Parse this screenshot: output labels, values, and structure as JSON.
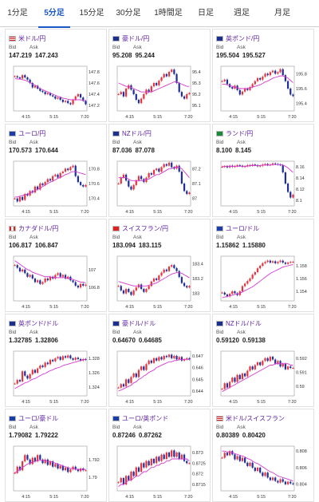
{
  "tabs": [
    {
      "label": "1分足",
      "active": false
    },
    {
      "label": "5分足",
      "active": true
    },
    {
      "label": "15分足",
      "active": false
    },
    {
      "label": "30分足",
      "active": false
    },
    {
      "label": "1時間足",
      "active": false
    },
    {
      "label": "日足",
      "active": false
    },
    {
      "label": "週足",
      "active": false
    },
    {
      "label": "月足",
      "active": false
    }
  ],
  "labels": {
    "bid": "Bid",
    "ask": "Ask"
  },
  "colors": {
    "up": "#e8323c",
    "down": "#1f2f9a",
    "ma": "#d63ad0",
    "ma2": "#3ba3d6",
    "link": "#5a1f9e",
    "active_tab": "#1a56c4"
  },
  "pairs": [
    {
      "name": "米ドル/円",
      "flag": "us-jp",
      "bid": "147.219",
      "ask": "147.243",
      "y_ticks": [
        "147.8",
        "147.6",
        "147.4",
        "147.2"
      ],
      "y_min": 147.1,
      "y_max": 147.9,
      "close": [
        147.72,
        147.7,
        147.68,
        147.74,
        147.7,
        147.66,
        147.6,
        147.52,
        147.55,
        147.5,
        147.46,
        147.44,
        147.4,
        147.42,
        147.38,
        147.36,
        147.32,
        147.34,
        147.3,
        147.26,
        147.28,
        147.24,
        147.22,
        147.3,
        147.36,
        147.4,
        147.34,
        147.28,
        147.22
      ],
      "ma": [
        147.68,
        147.67,
        147.67,
        147.66,
        147.65,
        147.63,
        147.61,
        147.58,
        147.56,
        147.53,
        147.5,
        147.48,
        147.46,
        147.44,
        147.42,
        147.4,
        147.38,
        147.36,
        147.35,
        147.33,
        147.32,
        147.31,
        147.3,
        147.3,
        147.3,
        147.3,
        147.3,
        147.29,
        147.28
      ]
    },
    {
      "name": "豪ドル/円",
      "flag": "au-jp",
      "bid": "95.208",
      "ask": "95.244",
      "y_ticks": [
        "95.4",
        "95.3",
        "95.2",
        "95.1"
      ],
      "y_min": 95.05,
      "y_max": 95.45,
      "close": [
        95.2,
        95.22,
        95.18,
        95.25,
        95.28,
        95.24,
        95.2,
        95.15,
        95.12,
        95.16,
        95.2,
        95.24,
        95.22,
        95.27,
        95.3,
        95.28,
        95.32,
        95.35,
        95.38,
        95.36,
        95.4,
        95.42,
        95.38,
        95.3,
        95.22,
        95.18,
        95.16,
        95.2,
        95.21
      ],
      "ma": [
        95.3,
        95.29,
        95.28,
        95.27,
        95.27,
        95.26,
        95.25,
        95.24,
        95.23,
        95.22,
        95.22,
        95.22,
        95.22,
        95.22,
        95.23,
        95.24,
        95.25,
        95.26,
        95.27,
        95.28,
        95.29,
        95.3,
        95.31,
        95.31,
        95.3,
        95.29,
        95.28,
        95.27,
        95.27
      ]
    },
    {
      "name": "英ポンド/円",
      "flag": "gb-jp",
      "bid": "195.504",
      "ask": "195.527",
      "y_ticks": [
        "195.8",
        "195.6",
        "195.4"
      ],
      "y_min": 195.3,
      "y_max": 195.9,
      "close": [
        195.7,
        195.72,
        195.66,
        195.62,
        195.6,
        195.64,
        195.58,
        195.52,
        195.56,
        195.6,
        195.58,
        195.62,
        195.66,
        195.7,
        195.74,
        195.72,
        195.76,
        195.8,
        195.78,
        195.82,
        195.84,
        195.8,
        195.82,
        195.86,
        195.78,
        195.7,
        195.6,
        195.52,
        195.5
      ],
      "ma": [
        195.66,
        195.66,
        195.65,
        195.64,
        195.63,
        195.62,
        195.61,
        195.6,
        195.6,
        195.6,
        195.6,
        195.61,
        195.62,
        195.63,
        195.64,
        195.65,
        195.67,
        195.69,
        195.7,
        195.72,
        195.74,
        195.75,
        195.76,
        195.77,
        195.77,
        195.76,
        195.74,
        195.71,
        195.68
      ]
    },
    {
      "name": "ユーロ/円",
      "flag": "eu-jp",
      "bid": "170.573",
      "ask": "170.644",
      "y_ticks": [
        "170.8",
        "170.6",
        "170.4"
      ],
      "y_min": 170.3,
      "y_max": 170.9,
      "close": [
        170.4,
        170.36,
        170.42,
        170.38,
        170.46,
        170.44,
        170.5,
        170.48,
        170.56,
        170.52,
        170.6,
        170.58,
        170.62,
        170.66,
        170.64,
        170.7,
        170.72,
        170.68,
        170.74,
        170.76,
        170.8,
        170.78,
        170.82,
        170.84,
        170.7,
        170.62,
        170.58,
        170.56,
        170.58
      ],
      "ma": [
        170.42,
        170.42,
        170.43,
        170.44,
        170.45,
        170.46,
        170.47,
        170.49,
        170.51,
        170.52,
        170.54,
        170.56,
        170.58,
        170.6,
        170.62,
        170.63,
        170.65,
        170.67,
        170.68,
        170.7,
        170.72,
        170.73,
        170.75,
        170.76,
        170.76,
        170.75,
        170.74,
        170.73,
        170.72
      ]
    },
    {
      "name": "NZドル/円",
      "flag": "nz-jp",
      "bid": "87.036",
      "ask": "87.078",
      "y_ticks": [
        "87.2",
        "87.1",
        "87"
      ],
      "y_min": 86.95,
      "y_max": 87.25,
      "close": [
        87.1,
        87.14,
        87.16,
        87.12,
        87.08,
        87.06,
        87.09,
        87.12,
        87.15,
        87.13,
        87.11,
        87.14,
        87.17,
        87.16,
        87.19,
        87.2,
        87.18,
        87.21,
        87.23,
        87.22,
        87.24,
        87.21,
        87.2,
        87.22,
        87.18,
        87.1,
        87.05,
        87.03,
        87.04
      ],
      "ma": [
        87.14,
        87.14,
        87.14,
        87.14,
        87.13,
        87.12,
        87.12,
        87.12,
        87.12,
        87.12,
        87.12,
        87.13,
        87.13,
        87.14,
        87.15,
        87.16,
        87.16,
        87.17,
        87.18,
        87.19,
        87.2,
        87.2,
        87.21,
        87.21,
        87.21,
        87.2,
        87.18,
        87.16,
        87.14
      ]
    },
    {
      "name": "ランド/円",
      "flag": "za-jp",
      "bid": "8.100",
      "ask": "8.145",
      "y_ticks": [
        "8.16",
        "8.14",
        "8.12",
        "8.1"
      ],
      "y_min": 8.09,
      "y_max": 8.17,
      "close": [
        8.16,
        8.161,
        8.159,
        8.162,
        8.16,
        8.161,
        8.163,
        8.162,
        8.16,
        8.161,
        8.163,
        8.162,
        8.164,
        8.163,
        8.161,
        8.162,
        8.164,
        8.165,
        8.163,
        8.164,
        8.166,
        8.165,
        8.164,
        8.163,
        8.15,
        8.13,
        8.115,
        8.105,
        8.11
      ],
      "ma": [
        8.161,
        8.161,
        8.161,
        8.161,
        8.161,
        8.161,
        8.161,
        8.161,
        8.161,
        8.161,
        8.161,
        8.162,
        8.162,
        8.162,
        8.162,
        8.162,
        8.163,
        8.163,
        8.163,
        8.163,
        8.164,
        8.164,
        8.164,
        8.164,
        8.163,
        8.161,
        8.158,
        8.154,
        8.15
      ]
    },
    {
      "name": "カナダドル/円",
      "flag": "ca-jp",
      "bid": "106.817",
      "ask": "106.847",
      "y_ticks": [
        "107",
        "106.8"
      ],
      "y_min": 106.65,
      "y_max": 107.15,
      "close": [
        107.05,
        107.02,
        106.98,
        107.0,
        106.96,
        106.92,
        106.94,
        106.9,
        106.86,
        106.88,
        106.84,
        106.86,
        106.9,
        106.88,
        106.92,
        106.9,
        106.94,
        106.96,
        106.92,
        106.94,
        106.9,
        106.92,
        106.88,
        106.86,
        106.82,
        106.8,
        106.84,
        106.82,
        106.83
      ],
      "ma": [
        107.1,
        107.08,
        107.06,
        107.04,
        107.02,
        107.0,
        106.99,
        106.97,
        106.96,
        106.95,
        106.94,
        106.93,
        106.92,
        106.92,
        106.92,
        106.91,
        106.91,
        106.91,
        106.91,
        106.91,
        106.91,
        106.9,
        106.9,
        106.89,
        106.88,
        106.87,
        106.86,
        106.86,
        106.85
      ]
    },
    {
      "name": "スイスフラン/円",
      "flag": "ch-jp",
      "bid": "183.094",
      "ask": "183.115",
      "y_ticks": [
        "183.4",
        "183.2",
        "183"
      ],
      "y_min": 182.9,
      "y_max": 183.5,
      "close": [
        183.1,
        183.04,
        183.0,
        183.06,
        183.02,
        182.98,
        183.04,
        183.08,
        183.12,
        183.06,
        183.02,
        183.06,
        183.1,
        183.16,
        183.2,
        183.18,
        183.24,
        183.28,
        183.32,
        183.3,
        183.36,
        183.38,
        183.34,
        183.3,
        183.22,
        183.14,
        183.1,
        183.08,
        183.1
      ],
      "ma": [
        183.16,
        183.15,
        183.14,
        183.13,
        183.12,
        183.11,
        183.1,
        183.1,
        183.1,
        183.1,
        183.1,
        183.1,
        183.11,
        183.12,
        183.13,
        183.14,
        183.16,
        183.18,
        183.2,
        183.22,
        183.24,
        183.26,
        183.27,
        183.28,
        183.28,
        183.27,
        183.25,
        183.23,
        183.21
      ]
    },
    {
      "name": "ユーロ/ドル",
      "flag": "eu-us",
      "bid": "1.15862",
      "ask": "1.15880",
      "y_ticks": [
        "1.158",
        "1.156",
        "1.154"
      ],
      "y_min": 1.1525,
      "y_max": 1.1595,
      "close": [
        1.1538,
        1.1535,
        1.1532,
        1.1536,
        1.154,
        1.1537,
        1.1534,
        1.154,
        1.1548,
        1.1552,
        1.1556,
        1.156,
        1.1566,
        1.157,
        1.1576,
        1.158,
        1.1584,
        1.1586,
        1.1588,
        1.1585,
        1.1587,
        1.1584,
        1.1586,
        1.1588,
        1.1585,
        1.1583,
        1.1585,
        1.1586,
        1.1586
      ],
      "ma": [
        1.153,
        1.1531,
        1.1532,
        1.1533,
        1.1534,
        1.1535,
        1.1536,
        1.1537,
        1.1539,
        1.1541,
        1.1543,
        1.1545,
        1.1547,
        1.155,
        1.1553,
        1.1556,
        1.1559,
        1.1562,
        1.1565,
        1.1568,
        1.157,
        1.1572,
        1.1574,
        1.1576,
        1.1578,
        1.1579,
        1.158,
        1.1581,
        1.1582
      ]
    },
    {
      "name": "英ポンド/ドル",
      "flag": "gb-us",
      "bid": "1.32785",
      "ask": "1.32806",
      "y_ticks": [
        "1.328",
        "1.326",
        "1.324"
      ],
      "y_min": 1.3228,
      "y_max": 1.329,
      "close": [
        1.3245,
        1.325,
        1.3248,
        1.3262,
        1.3256,
        1.3252,
        1.3258,
        1.3264,
        1.326,
        1.3266,
        1.327,
        1.3268,
        1.3274,
        1.3272,
        1.3278,
        1.3276,
        1.328,
        1.3282,
        1.3278,
        1.3283,
        1.3281,
        1.3284,
        1.328,
        1.3278,
        1.3281,
        1.3279,
        1.3277,
        1.3279,
        1.3278
      ],
      "ma": [
        1.3238,
        1.324,
        1.3242,
        1.3244,
        1.3246,
        1.3247,
        1.3249,
        1.3251,
        1.3252,
        1.3254,
        1.3256,
        1.3258,
        1.3259,
        1.3261,
        1.3263,
        1.3264,
        1.3266,
        1.3267,
        1.3268,
        1.327,
        1.3271,
        1.3272,
        1.3273,
        1.3274,
        1.3275,
        1.3276,
        1.3277,
        1.3278,
        1.3279
      ]
    },
    {
      "name": "豪ドル/ドル",
      "flag": "au-us",
      "bid": "0.64670",
      "ask": "0.64685",
      "y_ticks": [
        "0.647",
        "0.646",
        "0.645",
        "0.644"
      ],
      "y_min": 0.6436,
      "y_max": 0.6474,
      "close": [
        0.6443,
        0.6446,
        0.6444,
        0.645,
        0.6447,
        0.6452,
        0.6455,
        0.6452,
        0.6458,
        0.6461,
        0.6458,
        0.6463,
        0.6466,
        0.6464,
        0.6468,
        0.6466,
        0.6469,
        0.6467,
        0.647,
        0.6469,
        0.6471,
        0.6468,
        0.647,
        0.6467,
        0.6469,
        0.6466,
        0.6467,
        0.6468,
        0.6467
      ],
      "ma": [
        0.644,
        0.6441,
        0.6442,
        0.6443,
        0.6444,
        0.6445,
        0.6447,
        0.6448,
        0.645,
        0.6451,
        0.6453,
        0.6454,
        0.6456,
        0.6457,
        0.6458,
        0.646,
        0.6461,
        0.6462,
        0.6463,
        0.6464,
        0.6465,
        0.6465,
        0.6466,
        0.6466,
        0.6467,
        0.6467,
        0.6467,
        0.6467,
        0.6467
      ]
    },
    {
      "name": "NZドル/ドル",
      "flag": "nz-us",
      "bid": "0.59120",
      "ask": "0.59138",
      "y_ticks": [
        "0.592",
        "0.591",
        "0.59"
      ],
      "y_min": 0.5893,
      "y_max": 0.5925,
      "close": [
        0.5898,
        0.5902,
        0.5899,
        0.5903,
        0.5906,
        0.5903,
        0.5908,
        0.5905,
        0.5909,
        0.5907,
        0.5911,
        0.5914,
        0.5912,
        0.5915,
        0.5917,
        0.5915,
        0.5918,
        0.592,
        0.5918,
        0.5921,
        0.5919,
        0.5916,
        0.5918,
        0.5914,
        0.5916,
        0.5912,
        0.5914,
        0.5913,
        0.5913
      ],
      "ma": [
        0.5896,
        0.5897,
        0.5898,
        0.5899,
        0.59,
        0.5901,
        0.5902,
        0.5903,
        0.5904,
        0.5905,
        0.5906,
        0.5907,
        0.5908,
        0.5909,
        0.591,
        0.5911,
        0.5912,
        0.5913,
        0.5914,
        0.5915,
        0.5915,
        0.5916,
        0.5916,
        0.5916,
        0.5916,
        0.5916,
        0.5916,
        0.5915,
        0.5915
      ]
    },
    {
      "name": "ユーロ/豪ドル",
      "flag": "eu-au",
      "bid": "1.79082",
      "ask": "1.79222",
      "y_ticks": [
        "1.792",
        "1.79"
      ],
      "y_min": 1.7885,
      "y_max": 1.7935,
      "close": [
        1.7905,
        1.7912,
        1.7908,
        1.7918,
        1.7925,
        1.792,
        1.7915,
        1.7922,
        1.7918,
        1.7925,
        1.792,
        1.7916,
        1.792,
        1.7914,
        1.7918,
        1.7912,
        1.7915,
        1.791,
        1.7913,
        1.7908,
        1.7911,
        1.7906,
        1.7909,
        1.7912,
        1.7909,
        1.7907,
        1.791,
        1.7908,
        1.7908
      ],
      "ma": [
        1.7905,
        1.7907,
        1.7909,
        1.7911,
        1.7913,
        1.7915,
        1.7916,
        1.7917,
        1.7918,
        1.7919,
        1.7919,
        1.7919,
        1.7919,
        1.7918,
        1.7918,
        1.7917,
        1.7916,
        1.7915,
        1.7914,
        1.7913,
        1.7912,
        1.7911,
        1.791,
        1.791,
        1.7909,
        1.7909,
        1.7909,
        1.7909,
        1.7909
      ]
    },
    {
      "name": "ユーロ/英ポンド",
      "flag": "eu-gb",
      "bid": "0.87246",
      "ask": "0.87262",
      "y_ticks": [
        "0.873",
        "0.8725",
        "0.872",
        "0.8715"
      ],
      "y_min": 0.8712,
      "y_max": 0.8733,
      "close": [
        0.8716,
        0.8718,
        0.8715,
        0.8719,
        0.8717,
        0.8721,
        0.8719,
        0.8723,
        0.8721,
        0.8725,
        0.8723,
        0.8726,
        0.8724,
        0.8727,
        0.8725,
        0.8728,
        0.8726,
        0.8729,
        0.8727,
        0.873,
        0.8728,
        0.8731,
        0.8728,
        0.873,
        0.8727,
        0.8729,
        0.8726,
        0.8725,
        0.8725
      ],
      "ma": [
        0.8714,
        0.8715,
        0.8715,
        0.8716,
        0.8717,
        0.8717,
        0.8718,
        0.8719,
        0.8719,
        0.872,
        0.8721,
        0.8721,
        0.8722,
        0.8723,
        0.8723,
        0.8724,
        0.8724,
        0.8725,
        0.8725,
        0.8726,
        0.8726,
        0.8727,
        0.8727,
        0.8727,
        0.8727,
        0.8727,
        0.8727,
        0.8727,
        0.8726
      ]
    },
    {
      "name": "米ドル/スイスフラン",
      "flag": "us-ch",
      "bid": "0.80389",
      "ask": "0.80420",
      "y_ticks": [
        "0.808",
        "0.806",
        "0.804"
      ],
      "y_min": 0.8032,
      "y_max": 0.8086,
      "close": [
        0.8072,
        0.8078,
        0.8075,
        0.808,
        0.8076,
        0.807,
        0.8074,
        0.8068,
        0.8072,
        0.8066,
        0.8062,
        0.8066,
        0.806,
        0.8056,
        0.806,
        0.8054,
        0.805,
        0.8054,
        0.8048,
        0.8045,
        0.8048,
        0.8044,
        0.8042,
        0.8046,
        0.8043,
        0.804,
        0.8043,
        0.8041,
        0.804
      ],
      "ma": [
        0.808,
        0.808,
        0.8079,
        0.8079,
        0.8078,
        0.8077,
        0.8076,
        0.8075,
        0.8074,
        0.8073,
        0.8071,
        0.807,
        0.8068,
        0.8066,
        0.8065,
        0.8063,
        0.8061,
        0.8059,
        0.8057,
        0.8055,
        0.8054,
        0.8052,
        0.805,
        0.8049,
        0.8048,
        0.8047,
        0.8046,
        0.8045,
        0.8044
      ]
    }
  ],
  "x_ticks": [
    "4:15",
    "5:15",
    "7:20"
  ]
}
